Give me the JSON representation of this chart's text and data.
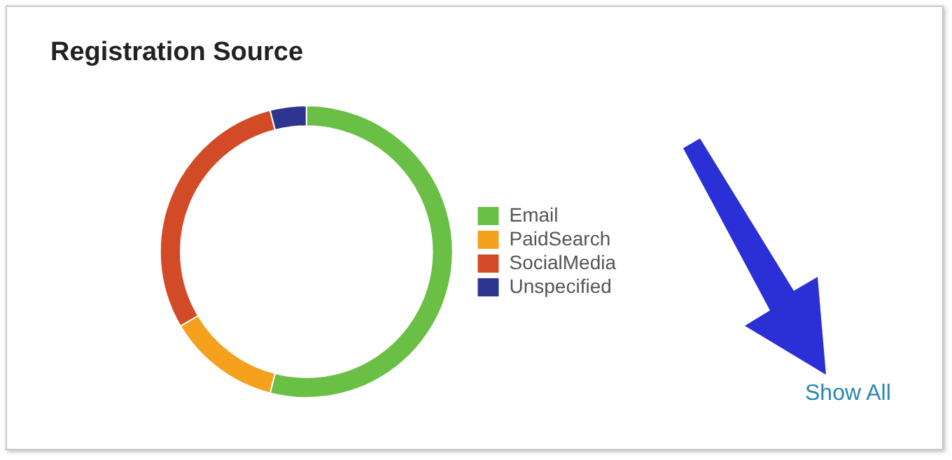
{
  "chart_data": {
    "type": "donut",
    "title": "Registration Source",
    "categories": [
      "Email",
      "PaidSearch",
      "SocialMedia",
      "Unspecified"
    ],
    "values": [
      54,
      12.5,
      29.5,
      4
    ],
    "colors": [
      "#6abf45",
      "#f5a11e",
      "#d34a26",
      "#2e3591"
    ],
    "legend": "right",
    "annotations": [
      "Show All"
    ]
  }
}
